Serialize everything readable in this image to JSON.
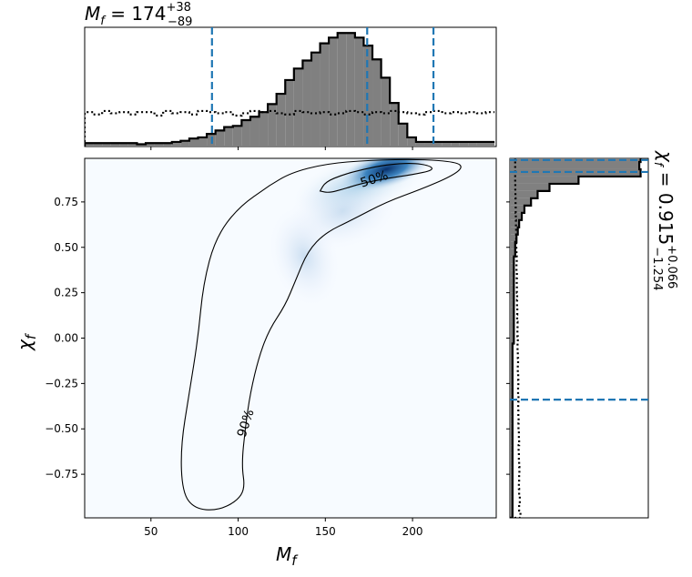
{
  "chart_data": {
    "type": "corner",
    "main": {
      "type": "heatmap",
      "xlabel": "M",
      "xlabel_sub": "f",
      "ylabel": "χ",
      "ylabel_sub": "f",
      "xlim": [
        12,
        248
      ],
      "ylim": [
        -0.99,
        0.99
      ],
      "xticks": [
        50,
        100,
        150,
        200
      ],
      "xtick_labels": [
        "50",
        "100",
        "150",
        "200"
      ],
      "yticks": [
        0.75,
        0.5,
        0.25,
        0.0,
        -0.25,
        -0.5,
        -0.75
      ],
      "ytick_labels": [
        "0.75",
        "0.50",
        "0.25",
        "0.00",
        "−0.25",
        "−0.50",
        "−0.75"
      ],
      "contour_labels": [
        "50%",
        "90%"
      ],
      "contour_50": [
        [
          147,
          0.81
        ],
        [
          150,
          0.86
        ],
        [
          160,
          0.9
        ],
        [
          172,
          0.93
        ],
        [
          185,
          0.955
        ],
        [
          200,
          0.965
        ],
        [
          210,
          0.95
        ],
        [
          212,
          0.925
        ],
        [
          200,
          0.9
        ],
        [
          185,
          0.88
        ],
        [
          170,
          0.85
        ],
        [
          160,
          0.82
        ],
        [
          152,
          0.8
        ],
        [
          147,
          0.81
        ]
      ],
      "contour_90": [
        [
          118,
          0.84
        ],
        [
          130,
          0.91
        ],
        [
          150,
          0.96
        ],
        [
          175,
          0.98
        ],
        [
          205,
          0.985
        ],
        [
          225,
          0.97
        ],
        [
          229,
          0.94
        ],
        [
          222,
          0.89
        ],
        [
          205,
          0.82
        ],
        [
          185,
          0.75
        ],
        [
          165,
          0.65
        ],
        [
          150,
          0.58
        ],
        [
          140,
          0.48
        ],
        [
          133,
          0.32
        ],
        [
          127,
          0.18
        ],
        [
          118,
          0.05
        ],
        [
          112,
          -0.1
        ],
        [
          107,
          -0.3
        ],
        [
          104,
          -0.5
        ],
        [
          102,
          -0.7
        ],
        [
          104,
          -0.83
        ],
        [
          99,
          -0.9
        ],
        [
          88,
          -0.95
        ],
        [
          75,
          -0.94
        ],
        [
          68,
          -0.85
        ],
        [
          67,
          -0.6
        ],
        [
          72,
          -0.3
        ],
        [
          77,
          0
        ],
        [
          80,
          0.3
        ],
        [
          87,
          0.55
        ],
        [
          100,
          0.72
        ],
        [
          118,
          0.84
        ]
      ],
      "density_peak": {
        "x": 185,
        "y": 0.93
      }
    },
    "top": {
      "type": "histogram",
      "title_value": "174",
      "title_plus": "+38",
      "title_minus": "−89",
      "bin_start": 12,
      "bin_width": 5,
      "posterior": [
        0.03,
        0.03,
        0.03,
        0.03,
        0.03,
        0.03,
        0.02,
        0.03,
        0.03,
        0.03,
        0.04,
        0.05,
        0.07,
        0.08,
        0.11,
        0.14,
        0.17,
        0.18,
        0.23,
        0.26,
        0.3,
        0.37,
        0.46,
        0.58,
        0.68,
        0.75,
        0.82,
        0.9,
        0.95,
        0.99,
        0.99,
        0.95,
        0.88,
        0.76,
        0.6,
        0.38,
        0.2,
        0.08,
        0.04,
        0.04,
        0.04,
        0.04,
        0.04,
        0.04,
        0.04,
        0.04,
        0.04
      ],
      "prior": [
        0.3,
        0.28,
        0.31,
        0.29,
        0.3,
        0.28,
        0.3,
        0.3,
        0.27,
        0.31,
        0.29,
        0.3,
        0.28,
        0.31,
        0.3,
        0.29,
        0.3,
        0.27,
        0.29,
        0.31,
        0.3,
        0.31,
        0.29,
        0.28,
        0.31,
        0.3,
        0.29,
        0.3,
        0.28,
        0.29,
        0.31,
        0.3,
        0.28,
        0.3,
        0.29,
        0.31,
        0.3,
        0.29,
        0.28,
        0.3,
        0.31,
        0.29,
        0.3,
        0.29,
        0.3,
        0.29,
        0.3
      ],
      "quantile_lines": [
        85,
        174,
        212
      ]
    },
    "right": {
      "type": "histogram",
      "title_value": "0.915",
      "title_plus": "+0.066",
      "title_minus": "−1.254",
      "bin_start": -0.99,
      "bin_width": 0.04,
      "posterior": [
        0.02,
        0.02,
        0.02,
        0.02,
        0.02,
        0.02,
        0.02,
        0.02,
        0.02,
        0.02,
        0.02,
        0.02,
        0.02,
        0.02,
        0.02,
        0.02,
        0.02,
        0.02,
        0.02,
        0.02,
        0.02,
        0.02,
        0.02,
        0.02,
        0.03,
        0.03,
        0.03,
        0.03,
        0.03,
        0.03,
        0.03,
        0.03,
        0.03,
        0.03,
        0.03,
        0.03,
        0.04,
        0.04,
        0.05,
        0.06,
        0.07,
        0.09,
        0.11,
        0.16,
        0.21,
        0.3,
        0.52,
        0.99,
        0.98,
        0.99
      ],
      "prior": [
        0.08,
        0.07,
        0.075,
        0.07,
        0.068,
        0.07,
        0.072,
        0.07,
        0.068,
        0.066,
        0.07,
        0.068,
        0.065,
        0.066,
        0.064,
        0.063,
        0.065,
        0.062,
        0.064,
        0.063,
        0.06,
        0.062,
        0.06,
        0.058,
        0.06,
        0.057,
        0.058,
        0.055,
        0.056,
        0.054,
        0.055,
        0.053,
        0.052,
        0.053,
        0.05,
        0.052,
        0.05,
        0.049,
        0.048,
        0.047,
        0.046,
        0.045,
        0.044,
        0.043,
        0.042,
        0.041,
        0.04,
        0.04,
        0.04,
        0.04
      ],
      "quantile_lines": [
        -0.339,
        0.915,
        0.981
      ]
    },
    "colors": {
      "hist_fill": "#808080",
      "quantile": "#1f77b4",
      "density_low": "#f7fbff",
      "density_high": "#08519c"
    }
  }
}
